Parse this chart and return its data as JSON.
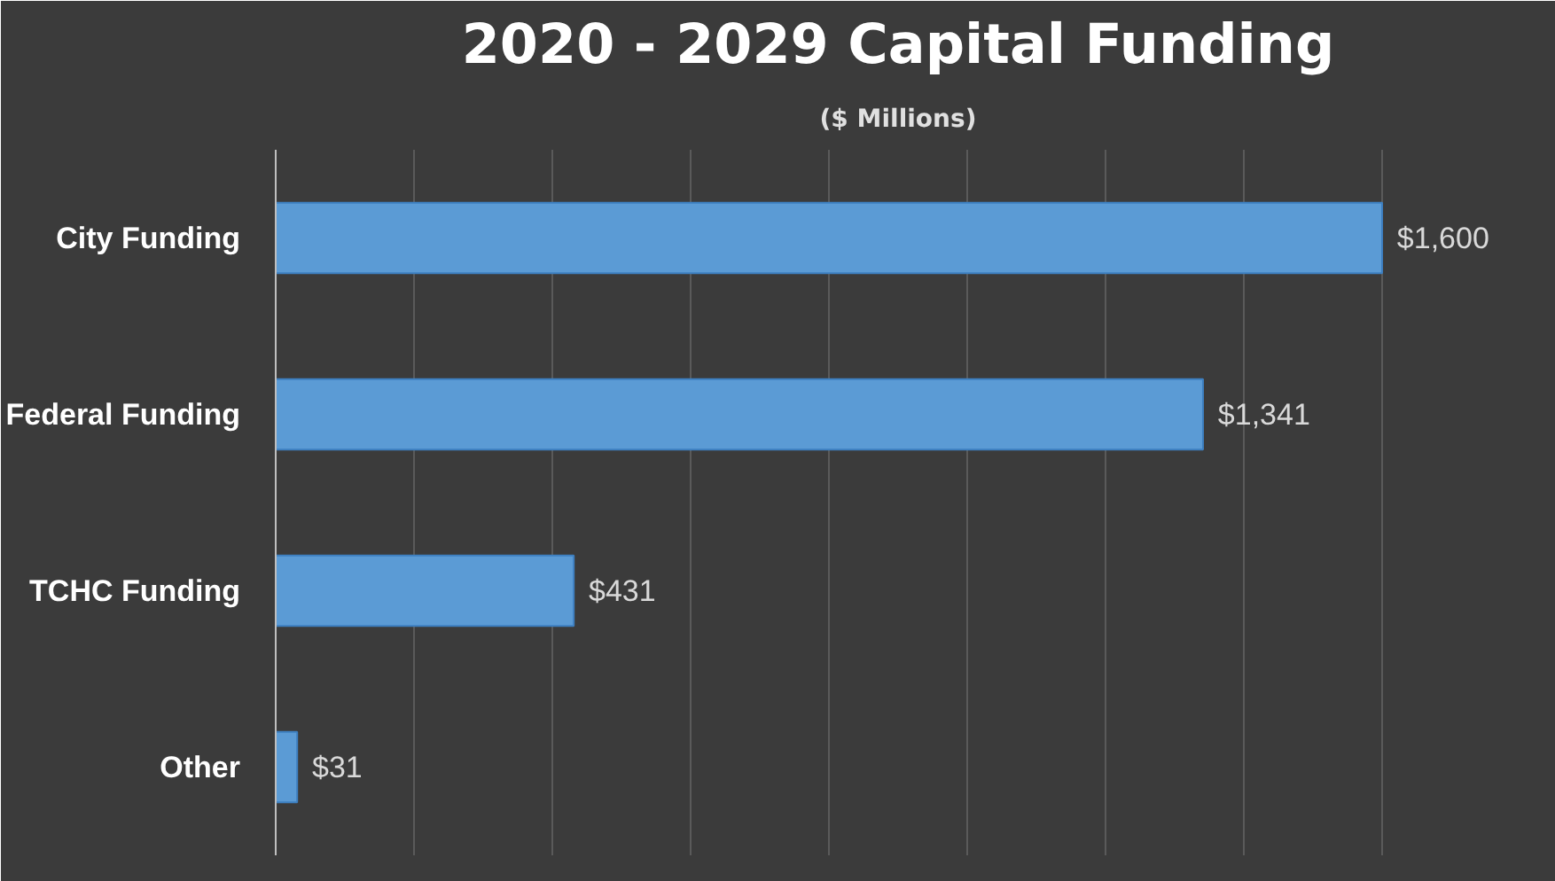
{
  "chart_data": {
    "type": "bar",
    "orientation": "horizontal",
    "title": "2020 - 2029 Capital Funding",
    "subtitle": "($ Millions)",
    "categories": [
      "City Funding",
      "Federal Funding",
      "TCHC Funding",
      "Other"
    ],
    "values": [
      1600,
      1341,
      431,
      31
    ],
    "value_labels": [
      "$1,600",
      "$1,341",
      "$431",
      "$31"
    ],
    "color": "#5b9bd5",
    "xlim": [
      0,
      1800
    ],
    "xticks": [
      {
        "value": 0,
        "label": null
      },
      {
        "value": 200,
        "label": null
      },
      {
        "value": 400,
        "label": null
      },
      {
        "value": 600,
        "label": null
      },
      {
        "value": 800,
        "label": null
      },
      {
        "value": 1000,
        "label": null
      },
      {
        "value": 1200,
        "label": null
      },
      {
        "value": 1400,
        "label": null
      },
      {
        "value": 1600,
        "label": null
      },
      {
        "value": 1800,
        "label": null
      }
    ],
    "grid": "x",
    "tick_labels": "y"
  }
}
